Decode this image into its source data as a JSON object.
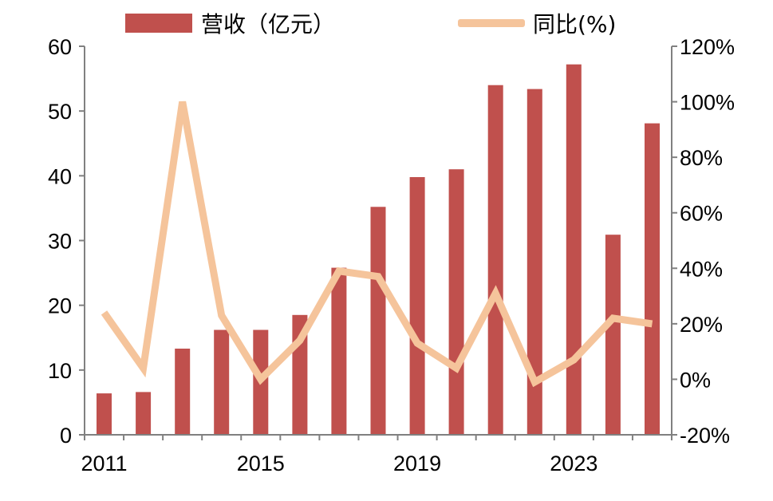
{
  "chart_data": {
    "type": "bar+line",
    "x": [
      2011,
      2012,
      2013,
      2014,
      2015,
      2016,
      2017,
      2018,
      2019,
      2020,
      2021,
      2022,
      2023,
      2024,
      2025
    ],
    "x_tick_labels": [
      "2011",
      "2015",
      "2019",
      "2023"
    ],
    "x_tick_values": [
      2011,
      2015,
      2019,
      2023
    ],
    "series": [
      {
        "name": "营收（亿元）",
        "type": "bar",
        "axis": "left",
        "color": "#c0504d",
        "values": [
          6.4,
          6.6,
          13.3,
          16.2,
          16.2,
          18.5,
          25.8,
          35.2,
          39.8,
          41.0,
          54.0,
          53.4,
          57.2,
          30.9,
          48.1
        ]
      },
      {
        "name": "同比(%)",
        "type": "line",
        "axis": "right",
        "color": "#f5c49b",
        "values": [
          24,
          4,
          100,
          23,
          0,
          14,
          39,
          37,
          13,
          4,
          31,
          -1,
          7,
          22,
          20
        ]
      }
    ],
    "y_left": {
      "min": 0,
      "max": 60,
      "ticks": [
        0,
        10,
        20,
        30,
        40,
        50,
        60
      ],
      "tick_labels": [
        "0",
        "10",
        "20",
        "30",
        "40",
        "50",
        "60"
      ]
    },
    "y_right": {
      "min": -20,
      "max": 120,
      "ticks": [
        -20,
        0,
        20,
        40,
        60,
        80,
        100,
        120
      ],
      "tick_labels": [
        "-20%",
        "0%",
        "20%",
        "40%",
        "60%",
        "80%",
        "100%",
        "120%"
      ]
    },
    "legend": {
      "position": "top",
      "entries": [
        "营收（亿元）",
        "同比(%)"
      ]
    },
    "grid": false,
    "axis_color": "#808080"
  }
}
